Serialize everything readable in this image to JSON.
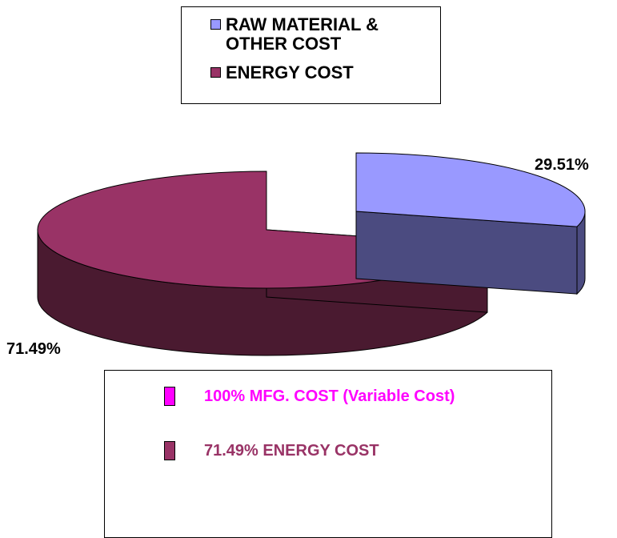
{
  "chart_data": {
    "type": "pie",
    "style": "3d-exploded",
    "slices": [
      {
        "label": "RAW MATERIAL & OTHER COST",
        "value": 29.51,
        "data_label": "29.51%",
        "color": "#9999FF",
        "side_color": "#4B4B80"
      },
      {
        "label": "ENERGY COST",
        "value": 71.49,
        "data_label": "71.49%",
        "color": "#993366",
        "side_color": "#4A1A30"
      }
    ],
    "legend_placement": "top"
  },
  "legend_top": {
    "items": [
      {
        "label": "RAW MATERIAL & OTHER COST",
        "color": "#9999FF"
      },
      {
        "label": "ENERGY COST",
        "color": "#993366"
      }
    ]
  },
  "legend_bottom": {
    "items": [
      {
        "label": "100% MFG. COST (Variable Cost)",
        "color": "#FF00FF",
        "text_color": "#FF00FF"
      },
      {
        "label": "71.49% ENERGY COST",
        "color": "#993366",
        "text_color": "#993366"
      }
    ]
  }
}
